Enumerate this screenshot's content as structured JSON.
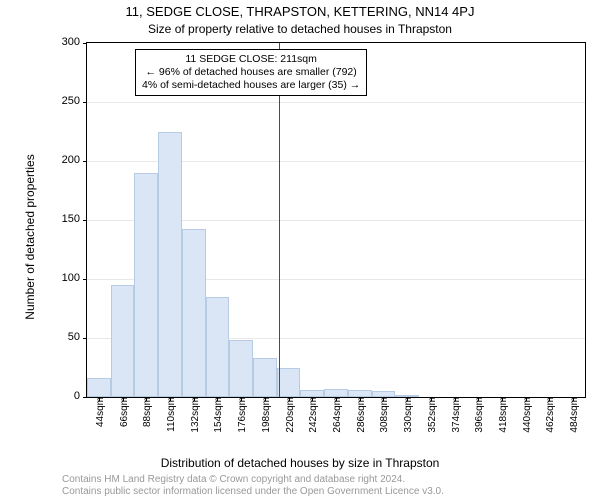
{
  "titles": {
    "main": "11, SEDGE CLOSE, THRAPSTON, KETTERING, NN14 4PJ",
    "sub": "Size of property relative to detached houses in Thrapston"
  },
  "axes": {
    "ylabel": "Number of detached properties",
    "xlabel": "Distribution of detached houses by size in Thrapston",
    "ymin": 0,
    "ymax": 300,
    "ytick_step": 50,
    "ytick_fontsize": 11,
    "xtick_fontsize": 10,
    "grid_color": "#e8e8e8",
    "border_color": "#000000"
  },
  "chart": {
    "type": "histogram",
    "bin_width_sqm": 22,
    "bins_start_sqm": 33,
    "labels": [
      "44sqm",
      "66sqm",
      "88sqm",
      "110sqm",
      "132sqm",
      "154sqm",
      "176sqm",
      "198sqm",
      "220sqm",
      "242sqm",
      "264sqm",
      "286sqm",
      "308sqm",
      "330sqm",
      "352sqm",
      "374sqm",
      "396sqm",
      "418sqm",
      "440sqm",
      "462sqm",
      "484sqm"
    ],
    "values": [
      16,
      95,
      190,
      225,
      142,
      85,
      48,
      33,
      25,
      6,
      7,
      6,
      5,
      2,
      0,
      0,
      0,
      0,
      0,
      0,
      0
    ],
    "bar_fill": "#dae6f5",
    "bar_stroke": "#b8cbe4",
    "background": "#ffffff"
  },
  "marker": {
    "value_sqm": 211,
    "color": "#ff0000"
  },
  "annotation": {
    "line1": "11 SEDGE CLOSE: 211sqm",
    "line2": "← 96% of detached houses are smaller (792)",
    "line3": "4% of semi-detached houses are larger (35) →",
    "border": "#000000",
    "background": "#ffffff",
    "fontsize": 10.5
  },
  "footer": {
    "line1": "Contains HM Land Registry data © Crown copyright and database right 2024.",
    "line2": "Contains public sector information licensed under the Open Government Licence v3.0.",
    "color": "#999999",
    "fontsize": 10
  }
}
